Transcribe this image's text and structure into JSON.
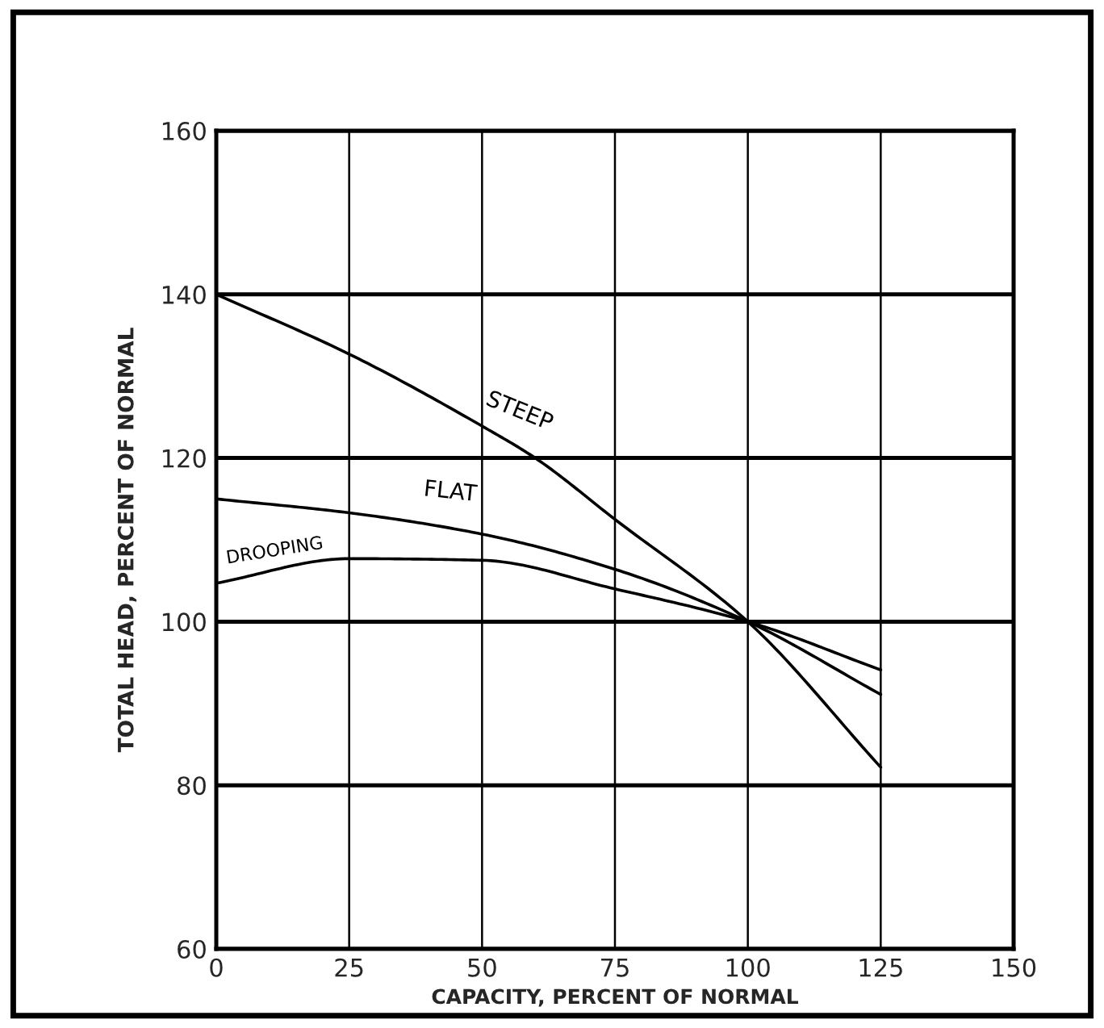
{
  "chart_data": {
    "type": "line",
    "xlabel": "CAPACITY, PERCENT OF NORMAL",
    "ylabel": "TOTAL HEAD, PERCENT OF NORMAL",
    "x": [
      0,
      25,
      50,
      60,
      75,
      100,
      125
    ],
    "series": [
      {
        "name": "STEEP",
        "color": "#000000",
        "values": [
          140,
          132.7,
          123.9,
          120,
          112.5,
          100,
          82.2
        ]
      },
      {
        "name": "FLAT",
        "color": "#000000",
        "values": [
          115,
          113.3,
          110.7,
          null,
          106.4,
          100,
          91.1
        ]
      },
      {
        "name": "DROOPING",
        "color": "#000000",
        "values": [
          104.7,
          107.7,
          107.5,
          null,
          104,
          100,
          94.1
        ]
      }
    ],
    "xlim": [
      0,
      150
    ],
    "ylim": [
      60,
      160
    ],
    "xticks": [
      0,
      25,
      50,
      75,
      100,
      125,
      150
    ],
    "yticks": [
      60,
      80,
      100,
      120,
      140,
      160
    ],
    "grid": true,
    "legend": false,
    "marker": "none",
    "line_style": "solid"
  }
}
